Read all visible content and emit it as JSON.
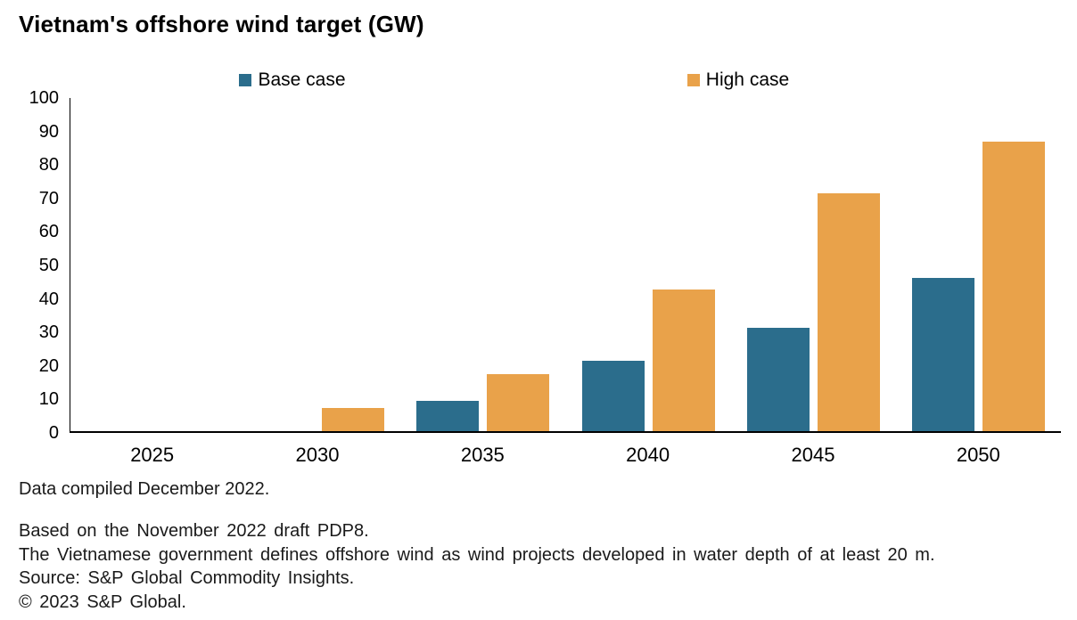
{
  "title": "Vietnam's offshore wind target (GW)",
  "chart_data": {
    "type": "bar",
    "title": "Vietnam's offshore wind target (GW)",
    "categories": [
      "2025",
      "2030",
      "2035",
      "2040",
      "2045",
      "2050"
    ],
    "series": [
      {
        "name": "Base case",
        "color": "#2B6D8C",
        "values": [
          0,
          0,
          9,
          21,
          31,
          46
        ]
      },
      {
        "name": "High case",
        "color": "#E9A24A",
        "values": [
          0,
          7,
          17,
          42.5,
          71.5,
          87
        ]
      }
    ],
    "xlabel": "",
    "ylabel": "",
    "ylim": [
      0,
      100
    ],
    "ytick_interval": 10,
    "grid": false,
    "legend_position": "top"
  },
  "footnotes": {
    "compiled": "Data compiled December 2022.",
    "line1": "Based on the November 2022 draft PDP8.",
    "line2": "The Vietnamese government defines offshore wind as wind projects developed in water depth of at least 20 m.",
    "source": "Source: S&P Global Commodity Insights.",
    "copyright": "© 2023 S&P Global."
  }
}
